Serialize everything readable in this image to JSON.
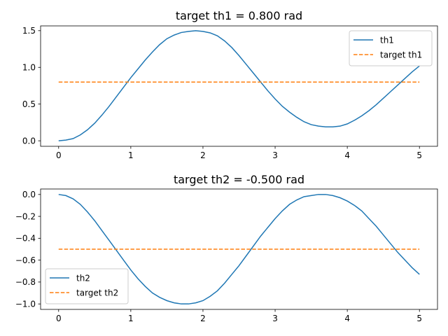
{
  "chart_data": [
    {
      "type": "line",
      "title": "target th1 = 0.800 rad",
      "xlabel": "",
      "ylabel": "",
      "xlim": [
        -0.25,
        5.25
      ],
      "ylim": [
        -0.075,
        1.565
      ],
      "xticks": [
        0,
        1,
        2,
        3,
        4,
        5
      ],
      "xtick_labels": [
        "0",
        "1",
        "2",
        "3",
        "4",
        "5"
      ],
      "yticks": [
        0.0,
        0.5,
        1.0,
        1.5
      ],
      "ytick_labels": [
        "0.0",
        "0.5",
        "1.0",
        "1.5"
      ],
      "grid": false,
      "legend_position": "upper right",
      "series": [
        {
          "name": "th1",
          "style": "solid",
          "color": "#1f77b4",
          "x": [
            0,
            0.1,
            0.2,
            0.3,
            0.4,
            0.5,
            0.6,
            0.7,
            0.8,
            0.9,
            1.0,
            1.1,
            1.2,
            1.3,
            1.4,
            1.5,
            1.6,
            1.7,
            1.8,
            1.9,
            2.0,
            2.1,
            2.2,
            2.3,
            2.4,
            2.5,
            2.6,
            2.7,
            2.8,
            2.9,
            3.0,
            3.1,
            3.2,
            3.3,
            3.4,
            3.5,
            3.6,
            3.7,
            3.8,
            3.9,
            4.0,
            4.1,
            4.2,
            4.3,
            4.4,
            4.5,
            4.6,
            4.7,
            4.8,
            4.9,
            5.0
          ],
          "y": [
            0.0,
            0.01,
            0.03,
            0.08,
            0.15,
            0.24,
            0.35,
            0.47,
            0.6,
            0.73,
            0.86,
            0.98,
            1.1,
            1.21,
            1.31,
            1.39,
            1.44,
            1.475,
            1.49,
            1.5,
            1.49,
            1.47,
            1.43,
            1.36,
            1.27,
            1.16,
            1.04,
            0.92,
            0.8,
            0.68,
            0.57,
            0.47,
            0.39,
            0.32,
            0.26,
            0.22,
            0.2,
            0.19,
            0.19,
            0.2,
            0.23,
            0.28,
            0.34,
            0.41,
            0.49,
            0.58,
            0.67,
            0.76,
            0.85,
            0.94,
            1.02
          ]
        },
        {
          "name": "target th1",
          "style": "dashed",
          "color": "#ff7f0e",
          "x": [
            0,
            5
          ],
          "y": [
            0.8,
            0.8
          ]
        }
      ]
    },
    {
      "type": "line",
      "title": "target th2 = -0.500 rad",
      "xlabel": "",
      "ylabel": "",
      "xlim": [
        -0.25,
        5.25
      ],
      "ylim": [
        -1.05,
        0.05
      ],
      "xticks": [
        0,
        1,
        2,
        3,
        4,
        5
      ],
      "xtick_labels": [
        "0",
        "1",
        "2",
        "3",
        "4",
        "5"
      ],
      "yticks": [
        0.0,
        -0.2,
        -0.4,
        -0.6,
        -0.8,
        -1.0
      ],
      "ytick_labels": [
        "0.0",
        "−0.2",
        "−0.4",
        "−0.6",
        "−0.8",
        "−1.0"
      ],
      "grid": false,
      "legend_position": "lower left",
      "series": [
        {
          "name": "th2",
          "style": "solid",
          "color": "#1f77b4",
          "x": [
            0,
            0.1,
            0.2,
            0.3,
            0.4,
            0.5,
            0.6,
            0.7,
            0.8,
            0.9,
            1.0,
            1.1,
            1.2,
            1.3,
            1.4,
            1.5,
            1.6,
            1.7,
            1.8,
            1.9,
            2.0,
            2.1,
            2.2,
            2.3,
            2.4,
            2.5,
            2.6,
            2.7,
            2.8,
            2.9,
            3.0,
            3.1,
            3.2,
            3.3,
            3.4,
            3.5,
            3.6,
            3.7,
            3.8,
            3.9,
            4.0,
            4.1,
            4.2,
            4.3,
            4.4,
            4.5,
            4.6,
            4.7,
            4.8,
            4.9,
            5.0
          ],
          "y": [
            0.0,
            -0.01,
            -0.04,
            -0.09,
            -0.16,
            -0.24,
            -0.33,
            -0.42,
            -0.51,
            -0.6,
            -0.69,
            -0.77,
            -0.84,
            -0.9,
            -0.94,
            -0.97,
            -0.99,
            -1.0,
            -1.0,
            -0.99,
            -0.97,
            -0.93,
            -0.88,
            -0.81,
            -0.73,
            -0.65,
            -0.56,
            -0.47,
            -0.38,
            -0.3,
            -0.22,
            -0.15,
            -0.09,
            -0.05,
            -0.02,
            -0.01,
            0.0,
            0.0,
            -0.01,
            -0.03,
            -0.06,
            -0.1,
            -0.15,
            -0.22,
            -0.29,
            -0.37,
            -0.45,
            -0.53,
            -0.6,
            -0.67,
            -0.73
          ]
        },
        {
          "name": "target th2",
          "style": "dashed",
          "color": "#ff7f0e",
          "x": [
            0,
            5
          ],
          "y": [
            -0.5,
            -0.5
          ]
        }
      ]
    }
  ]
}
